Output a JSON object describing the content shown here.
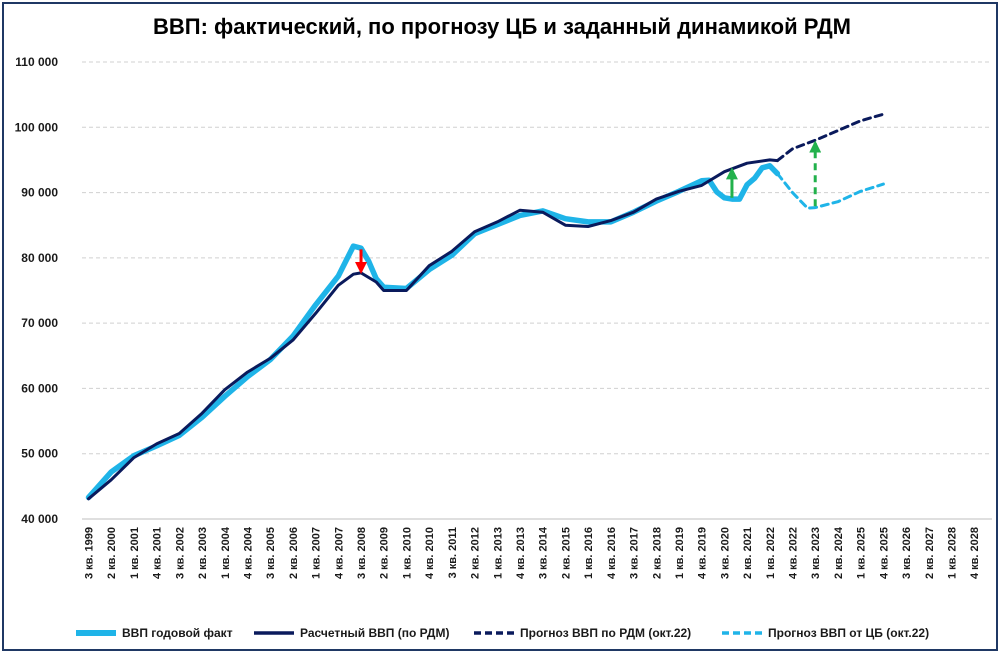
{
  "chart_data": {
    "type": "line",
    "title": "ВВП: фактический, по прогнозу ЦБ и заданный динамикой РДМ",
    "xlabel": "",
    "ylabel": "",
    "ylim": [
      40000,
      110000
    ],
    "y_ticks": [
      40000,
      50000,
      60000,
      70000,
      80000,
      90000,
      100000,
      110000
    ],
    "y_tick_labels": [
      "40 000",
      "50 000",
      "60 000",
      "70 000",
      "80 000",
      "90 000",
      "100 000",
      "110 000"
    ],
    "x_tick_labels": [
      "3 кв. 1999",
      "2 кв. 2000",
      "1 кв. 2001",
      "4 кв. 2001",
      "3 кв. 2002",
      "2 кв. 2003",
      "1 кв. 2004",
      "4 кв. 2004",
      "3 кв. 2005",
      "2 кв. 2006",
      "1 кв. 2007",
      "4 кв. 2007",
      "3 кв. 2008",
      "2 кв. 2009",
      "1 кв. 2010",
      "4 кв. 2010",
      "3 кв. 2011",
      "2 кв. 2012",
      "1 кв. 2013",
      "4 кв. 2013",
      "3 кв. 2014",
      "2 кв. 2015",
      "1 кв. 2016",
      "4 кв. 2016",
      "3 кв. 2017",
      "2 кв. 2018",
      "1 кв. 2019",
      "4 кв. 2019",
      "3 кв. 2020",
      "2 кв. 2021",
      "1 кв. 2022",
      "4 кв. 2022",
      "3 кв. 2023",
      "2 кв. 2024",
      "1 кв. 2025",
      "4 кв. 2025",
      "3 кв. 2026",
      "2 кв. 2027",
      "1 кв. 2028",
      "4 кв. 2028"
    ],
    "grid": "horizontal dashed",
    "legend_position": "bottom",
    "series": [
      {
        "name": "ВВП годовой факт",
        "style": "solid-thick",
        "color": "#1fb4e8",
        "points": [
          [
            "3 кв. 1999",
            43300
          ],
          [
            "2 кв. 2000",
            47200
          ],
          [
            "1 кв. 2001",
            49700
          ],
          [
            "4 кв. 2001",
            51200
          ],
          [
            "3 кв. 2002",
            52800
          ],
          [
            "2 кв. 2003",
            55600
          ],
          [
            "1 кв. 2004",
            58800
          ],
          [
            "4 кв. 2004",
            61800
          ],
          [
            "3 кв. 2005",
            64400
          ],
          [
            "2 кв. 2006",
            68000
          ],
          [
            "1 кв. 2007",
            72800
          ],
          [
            "4 кв. 2007",
            77200
          ],
          [
            "2 кв. 2008",
            81800
          ],
          [
            "3 кв. 2008",
            81500
          ],
          [
            "4 кв. 2008",
            79500
          ],
          [
            "1 кв. 2009",
            76800
          ],
          [
            "2 кв. 2009",
            75500
          ],
          [
            "1 кв. 2010",
            75300
          ],
          [
            "4 кв. 2010",
            78200
          ],
          [
            "3 кв. 2011",
            80400
          ],
          [
            "2 кв. 2012",
            83700
          ],
          [
            "1 кв. 2013",
            85100
          ],
          [
            "4 кв. 2013",
            86500
          ],
          [
            "3 кв. 2014",
            87200
          ],
          [
            "2 кв. 2015",
            86000
          ],
          [
            "1 кв. 2016",
            85500
          ],
          [
            "4 кв. 2016",
            85500
          ],
          [
            "3 кв. 2017",
            87000
          ],
          [
            "2 кв. 2018",
            88700
          ],
          [
            "1 кв. 2019",
            90200
          ],
          [
            "4 кв. 2019",
            91800
          ],
          [
            "1 кв. 2020",
            91900
          ],
          [
            "2 кв. 2020",
            90100
          ],
          [
            "3 кв. 2020",
            89200
          ],
          [
            "4 кв. 2020",
            89000
          ],
          [
            "1 кв. 2021",
            89000
          ],
          [
            "2 кв. 2021",
            91200
          ],
          [
            "3 кв. 2021",
            92200
          ],
          [
            "4 кв. 2021",
            93800
          ],
          [
            "1 кв. 2022",
            94100
          ],
          [
            "2 кв. 2022",
            92900
          ]
        ]
      },
      {
        "name": "Расчетный ВВП (по РДМ)",
        "style": "solid",
        "color": "#0a1a5c",
        "points": [
          [
            "3 кв. 1999",
            43100
          ],
          [
            "2 кв. 2000",
            46000
          ],
          [
            "1 кв. 2001",
            49400
          ],
          [
            "4 кв. 2001",
            51500
          ],
          [
            "3 кв. 2002",
            53100
          ],
          [
            "2 кв. 2003",
            56200
          ],
          [
            "1 кв. 2004",
            59800
          ],
          [
            "4 кв. 2004",
            62500
          ],
          [
            "3 кв. 2005",
            64600
          ],
          [
            "2 кв. 2006",
            67400
          ],
          [
            "1 кв. 2007",
            71500
          ],
          [
            "4 кв. 2007",
            75800
          ],
          [
            "2 кв. 2008",
            77500
          ],
          [
            "3 кв. 2008",
            77700
          ],
          [
            "1 кв. 2009",
            76300
          ],
          [
            "2 кв. 2009",
            75000
          ],
          [
            "1 кв. 2010",
            75000
          ],
          [
            "4 кв. 2010",
            78800
          ],
          [
            "3 кв. 2011",
            81000
          ],
          [
            "2 кв. 2012",
            84000
          ],
          [
            "1 кв. 2013",
            85500
          ],
          [
            "4 кв. 2013",
            87300
          ],
          [
            "3 кв. 2014",
            87000
          ],
          [
            "2 кв. 2015",
            85000
          ],
          [
            "1 кв. 2016",
            84800
          ],
          [
            "4 кв. 2016",
            85700
          ],
          [
            "3 кв. 2017",
            87000
          ],
          [
            "2 кв. 2018",
            89000
          ],
          [
            "1 кв. 2019",
            90200
          ],
          [
            "4 кв. 2019",
            91100
          ],
          [
            "3 кв. 2020",
            93200
          ],
          [
            "2 кв. 2021",
            94500
          ],
          [
            "1 кв. 2022",
            95000
          ],
          [
            "2 кв. 2022",
            94900
          ]
        ]
      },
      {
        "name": "Прогноз ВВП по РДМ (окт.22)",
        "style": "dashed",
        "color": "#0a1a5c",
        "points": [
          [
            "2 кв. 2022",
            94900
          ],
          [
            "4 кв. 2022",
            96700
          ],
          [
            "3 кв. 2023",
            98000
          ],
          [
            "2 кв. 2024",
            99500
          ],
          [
            "1 кв. 2025",
            101000
          ],
          [
            "4 кв. 2025",
            102000
          ]
        ]
      },
      {
        "name": "Прогноз ВВП от ЦБ (окт.22)",
        "style": "dashed",
        "color": "#1fb4e8",
        "points": [
          [
            "2 кв. 2022",
            92900
          ],
          [
            "4 кв. 2022",
            90000
          ],
          [
            "2 кв. 2023",
            87600
          ],
          [
            "3 кв. 2023",
            87700
          ],
          [
            "2 кв. 2024",
            88600
          ],
          [
            "1 кв. 2025",
            90200
          ],
          [
            "4 кв. 2025",
            91300
          ]
        ]
      }
    ],
    "annotations": [
      {
        "type": "arrow",
        "color": "#ff0000",
        "x": "3 кв. 2008",
        "from": 81300,
        "to": 77900
      },
      {
        "type": "arrow",
        "color": "#22b14c",
        "x": "4 кв. 2020",
        "from": 89200,
        "to": 93500
      },
      {
        "type": "arrow-dashed",
        "color": "#22b14c",
        "x": "3 кв. 2023",
        "from": 87900,
        "to": 97600
      }
    ]
  },
  "colors": {
    "fact": "#1fb4e8",
    "rdm": "#0a1a5c",
    "grid": "#d0d0d0",
    "frame": "#1f3864"
  }
}
